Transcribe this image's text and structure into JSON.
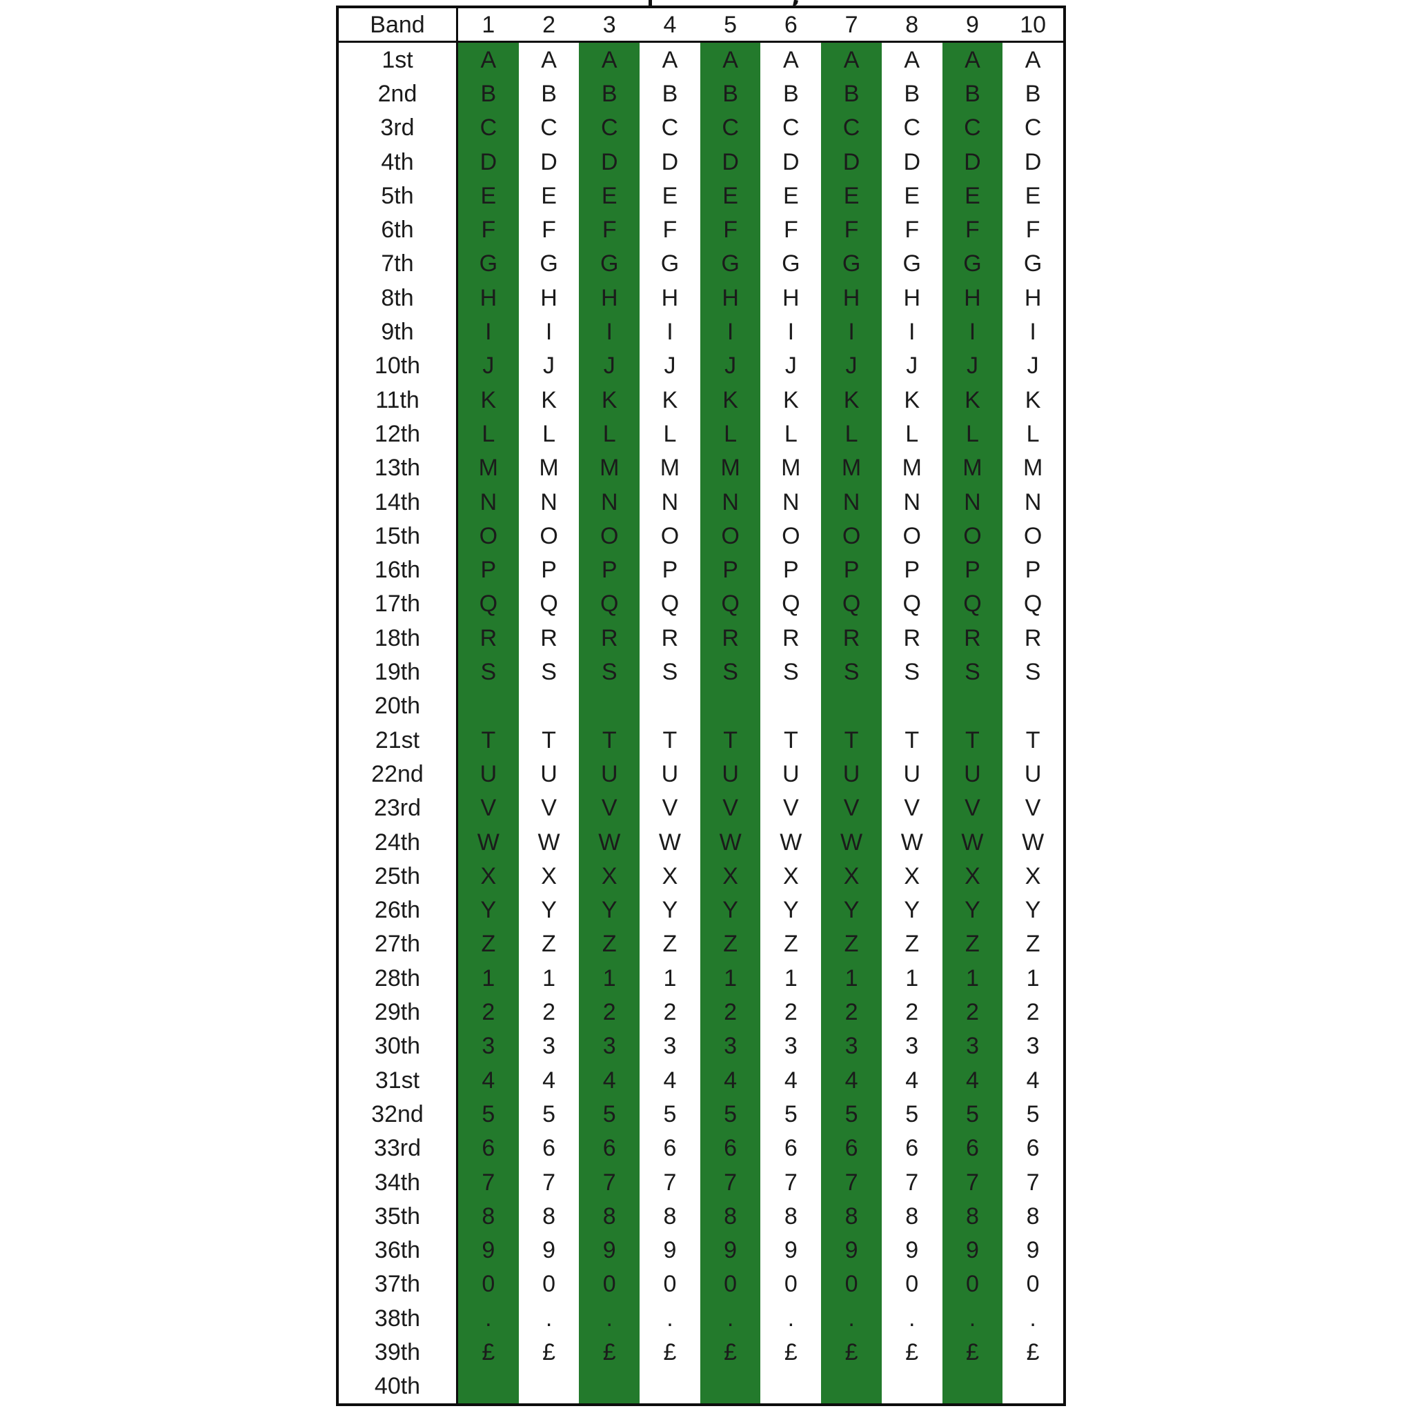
{
  "page": {
    "background": "#ffffff"
  },
  "table": {
    "header": {
      "band_label": "Band",
      "columns": [
        "1",
        "2",
        "3",
        "4",
        "5",
        "6",
        "7",
        "8",
        "9",
        "10"
      ]
    },
    "highlighted_columns": [
      1,
      3,
      5,
      7,
      9
    ],
    "colors": {
      "highlight": "#237A2C",
      "border": "#0d0d0d",
      "text": "#1b1b1b",
      "background": "#ffffff"
    },
    "rows": [
      {
        "band": "1st",
        "char": "A"
      },
      {
        "band": "2nd",
        "char": "B"
      },
      {
        "band": "3rd",
        "char": "C"
      },
      {
        "band": "4th",
        "char": "D"
      },
      {
        "band": "5th",
        "char": "E"
      },
      {
        "band": "6th",
        "char": "F"
      },
      {
        "band": "7th",
        "char": "G"
      },
      {
        "band": "8th",
        "char": "H"
      },
      {
        "band": "9th",
        "char": "I"
      },
      {
        "band": "10th",
        "char": "J"
      },
      {
        "band": "11th",
        "char": "K"
      },
      {
        "band": "12th",
        "char": "L"
      },
      {
        "band": "13th",
        "char": "M"
      },
      {
        "band": "14th",
        "char": "N"
      },
      {
        "band": "15th",
        "char": "O"
      },
      {
        "band": "16th",
        "char": "P"
      },
      {
        "band": "17th",
        "char": "Q"
      },
      {
        "band": "18th",
        "char": "R"
      },
      {
        "band": "19th",
        "char": "S"
      },
      {
        "band": "20th",
        "char": ""
      },
      {
        "band": "21st",
        "char": "T"
      },
      {
        "band": "22nd",
        "char": "U"
      },
      {
        "band": "23rd",
        "char": "V"
      },
      {
        "band": "24th",
        "char": "W"
      },
      {
        "band": "25th",
        "char": "X"
      },
      {
        "band": "26th",
        "char": "Y"
      },
      {
        "band": "27th",
        "char": "Z"
      },
      {
        "band": "28th",
        "char": "1"
      },
      {
        "band": "29th",
        "char": "2"
      },
      {
        "band": "30th",
        "char": "3"
      },
      {
        "band": "31st",
        "char": "4"
      },
      {
        "band": "32nd",
        "char": "5"
      },
      {
        "band": "33rd",
        "char": "6"
      },
      {
        "band": "34th",
        "char": "7"
      },
      {
        "band": "35th",
        "char": "8"
      },
      {
        "band": "36th",
        "char": "9"
      },
      {
        "band": "37th",
        "char": "0"
      },
      {
        "band": "38th",
        "char": "."
      },
      {
        "band": "39th",
        "char": "£"
      },
      {
        "band": "40th",
        "char": ""
      }
    ]
  }
}
